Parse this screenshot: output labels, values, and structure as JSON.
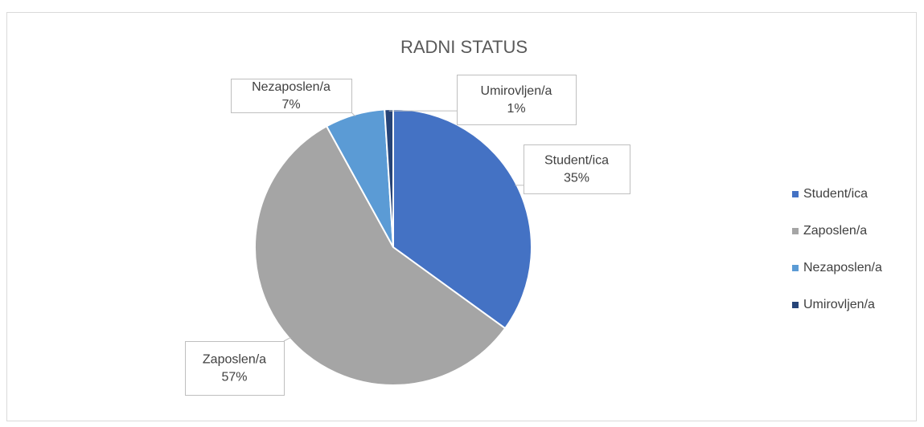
{
  "chart_data": {
    "type": "pie",
    "title": "RADNI STATUS",
    "categories": [
      "Student/ica",
      "Zaposlen/a",
      "Nezaposlen/a",
      "Umirovljen/a"
    ],
    "values": [
      35,
      57,
      7,
      1
    ],
    "value_labels": [
      "35%",
      "57%",
      "7%",
      "1%"
    ],
    "colors": [
      "#4472c4",
      "#a5a5a5",
      "#5b9bd5",
      "#264478"
    ],
    "legend": "right"
  }
}
